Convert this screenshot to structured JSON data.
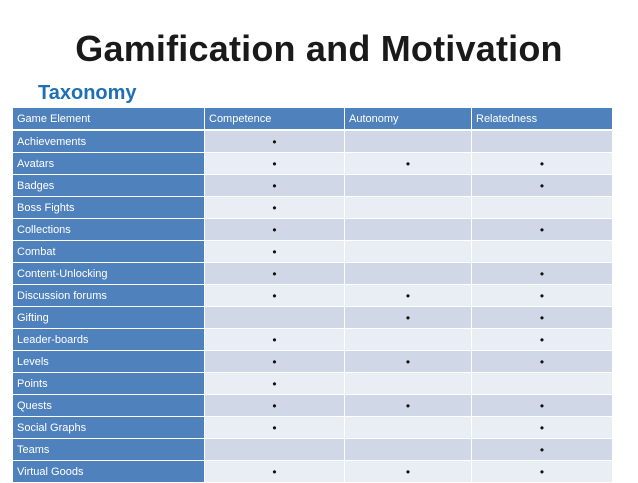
{
  "slide": {
    "title": "Gamification and Motivation",
    "subtitle": "Taxonomy"
  },
  "table": {
    "headers": [
      "Game Element",
      "Competence",
      "Autonomy",
      "Relatedness"
    ],
    "mark": "•",
    "rows": [
      {
        "name": "Achievements",
        "competence": "•",
        "autonomy": "",
        "relatedness": ""
      },
      {
        "name": "Avatars",
        "competence": "•",
        "autonomy": "•",
        "relatedness": "•"
      },
      {
        "name": "Badges",
        "competence": "•",
        "autonomy": "",
        "relatedness": "•"
      },
      {
        "name": "Boss Fights",
        "competence": "•",
        "autonomy": "",
        "relatedness": ""
      },
      {
        "name": "Collections",
        "competence": "•",
        "autonomy": "",
        "relatedness": "•"
      },
      {
        "name": "Combat",
        "competence": "•",
        "autonomy": "",
        "relatedness": ""
      },
      {
        "name": "Content-Unlocking",
        "competence": "•",
        "autonomy": "",
        "relatedness": "•"
      },
      {
        "name": "Discussion forums",
        "competence": "•",
        "autonomy": "•",
        "relatedness": "•"
      },
      {
        "name": "Gifting",
        "competence": "",
        "autonomy": "•",
        "relatedness": "•"
      },
      {
        "name": "Leader-boards",
        "competence": "•",
        "autonomy": "",
        "relatedness": "•"
      },
      {
        "name": "Levels",
        "competence": "•",
        "autonomy": "•",
        "relatedness": "•"
      },
      {
        "name": "Points",
        "competence": "•",
        "autonomy": "",
        "relatedness": ""
      },
      {
        "name": "Quests",
        "competence": "•",
        "autonomy": "•",
        "relatedness": "•"
      },
      {
        "name": "Social Graphs",
        "competence": "•",
        "autonomy": "",
        "relatedness": "•"
      },
      {
        "name": "Teams",
        "competence": "",
        "autonomy": "",
        "relatedness": "•"
      },
      {
        "name": "Virtual Goods",
        "competence": "•",
        "autonomy": "•",
        "relatedness": "•"
      }
    ]
  },
  "colors": {
    "header_bg": "#4f81bd",
    "row_odd": "#d0d8e8",
    "row_even": "#e9edf4",
    "subtitle": "#1f6fb5"
  }
}
